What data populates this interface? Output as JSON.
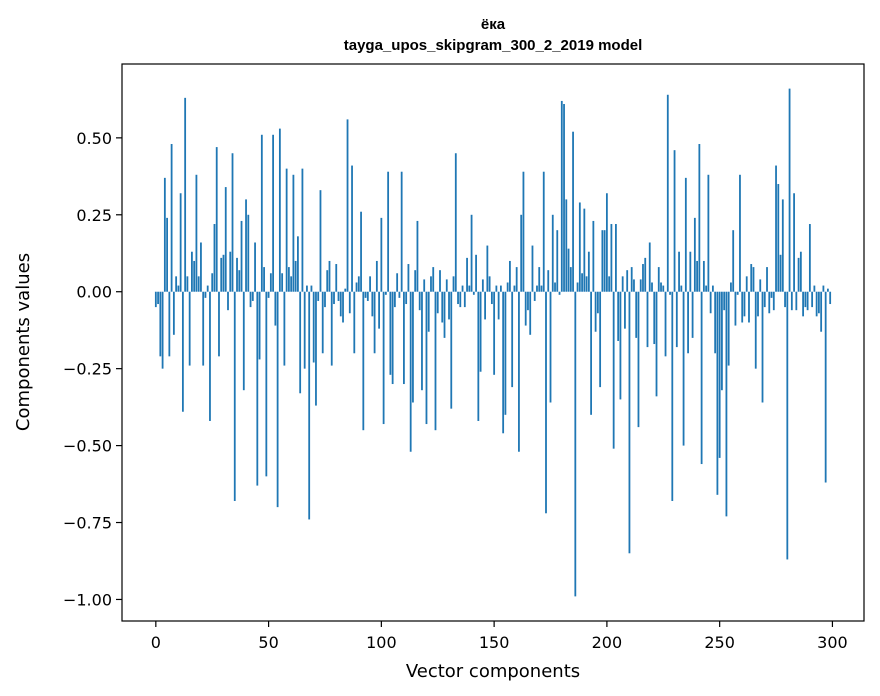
{
  "chart_data": {
    "type": "bar",
    "title": "ёка",
    "subtitle": "tayga_upos_skipgram_300_2_2019 model",
    "xlabel": "Vector components",
    "ylabel": "Components values",
    "xlim": [
      -15,
      314
    ],
    "ylim": [
      -1.07,
      0.74
    ],
    "xticks": [
      0,
      50,
      100,
      150,
      200,
      250,
      300
    ],
    "xtick_labels": [
      "0",
      "50",
      "100",
      "150",
      "200",
      "250",
      "300"
    ],
    "yticks": [
      0.5,
      0.25,
      0.0,
      -0.25,
      -0.5,
      -0.75,
      -1.0
    ],
    "ytick_labels": [
      "0.50",
      "0.25",
      "0.00",
      "−0.25",
      "−0.50",
      "−0.75",
      "−1.00"
    ],
    "grid": false,
    "bar_color": "#1f77b4",
    "x": "0..299 (component index)",
    "values": [
      -0.05,
      -0.04,
      -0.21,
      -0.25,
      0.37,
      0.24,
      -0.21,
      0.48,
      -0.14,
      0.05,
      0.02,
      0.32,
      -0.39,
      0.63,
      0.05,
      -0.24,
      0.13,
      0.1,
      0.38,
      0.05,
      0.16,
      -0.24,
      -0.02,
      0.02,
      -0.42,
      0.06,
      0.22,
      0.47,
      -0.21,
      0.11,
      0.12,
      0.34,
      -0.06,
      0.13,
      0.45,
      -0.68,
      0.11,
      0.07,
      0.23,
      -0.32,
      0.3,
      0.25,
      -0.05,
      -0.03,
      0.16,
      -0.63,
      -0.22,
      0.51,
      0.08,
      -0.6,
      -0.02,
      0.06,
      0.51,
      -0.11,
      -0.7,
      0.53,
      0.06,
      -0.24,
      0.4,
      0.08,
      0.05,
      0.38,
      0.1,
      0.18,
      -0.33,
      0.4,
      -0.25,
      0.02,
      -0.74,
      0.02,
      -0.23,
      -0.37,
      -0.03,
      0.33,
      -0.2,
      -0.05,
      0.07,
      0.1,
      -0.24,
      -0.04,
      0.09,
      -0.03,
      -0.08,
      -0.1,
      0.01,
      0.56,
      -0.07,
      0.41,
      -0.2,
      0.03,
      0.05,
      0.26,
      -0.45,
      -0.02,
      -0.03,
      0.05,
      -0.08,
      -0.2,
      0.1,
      -0.12,
      0.24,
      -0.43,
      -0.01,
      0.39,
      -0.27,
      -0.3,
      -0.05,
      0.06,
      -0.02,
      0.39,
      -0.3,
      -0.04,
      0.09,
      -0.52,
      -0.36,
      0.07,
      0.23,
      -0.06,
      -0.32,
      0.04,
      -0.43,
      -0.13,
      0.05,
      0.08,
      -0.45,
      -0.07,
      0.07,
      -0.1,
      -0.15,
      0.04,
      -0.09,
      -0.38,
      0.05,
      0.45,
      -0.04,
      -0.05,
      0.02,
      -0.05,
      0.11,
      0.02,
      0.25,
      -0.01,
      0.12,
      -0.42,
      -0.26,
      0.04,
      -0.09,
      0.15,
      0.05,
      -0.04,
      -0.27,
      0.02,
      -0.09,
      0.02,
      -0.46,
      -0.4,
      0.03,
      0.1,
      -0.31,
      0.02,
      0.08,
      -0.52,
      0.25,
      0.39,
      -0.11,
      -0.06,
      -0.14,
      0.15,
      -0.03,
      0.02,
      0.08,
      0.02,
      0.39,
      -0.72,
      0.07,
      -0.36,
      0.25,
      0.03,
      0.2,
      -0.01,
      0.62,
      0.61,
      0.3,
      0.14,
      0.08,
      0.52,
      -0.99,
      0.03,
      0.29,
      0.06,
      0.27,
      0.05,
      0.13,
      -0.4,
      0.23,
      -0.13,
      -0.07,
      -0.31,
      0.2,
      0.2,
      0.32,
      0.05,
      0.22,
      -0.51,
      0.22,
      -0.16,
      -0.35,
      0.05,
      -0.12,
      0.07,
      -0.85,
      0.08,
      0.04,
      -0.15,
      -0.44,
      0.04,
      0.09,
      0.11,
      -0.18,
      0.16,
      0.03,
      -0.17,
      -0.34,
      0.08,
      0.03,
      0.02,
      -0.21,
      0.64,
      -0.01,
      -0.68,
      0.46,
      -0.18,
      0.13,
      0.02,
      -0.5,
      0.37,
      -0.2,
      0.13,
      -0.15,
      0.24,
      0.1,
      0.48,
      -0.56,
      0.1,
      0.02,
      0.38,
      -0.07,
      0.02,
      -0.2,
      -0.66,
      -0.54,
      -0.32,
      -0.06,
      -0.73,
      -0.24,
      0.03,
      0.2,
      -0.11,
      -0.01,
      0.38,
      -0.1,
      -0.08,
      0.05,
      -0.1,
      0.09,
      0.08,
      -0.25,
      -0.08,
      0.04,
      -0.36,
      -0.05,
      0.08,
      -0.07,
      -0.02,
      -0.06,
      0.41,
      0.35,
      0.12,
      0.3,
      -0.05,
      -0.87,
      0.66,
      -0.06,
      0.32,
      -0.06,
      0.11,
      0.13,
      -0.08,
      -0.05,
      -0.06,
      0.22,
      -0.05,
      0.02,
      -0.08,
      -0.07,
      -0.13,
      0.02,
      -0.62,
      0.01,
      -0.04
    ]
  }
}
